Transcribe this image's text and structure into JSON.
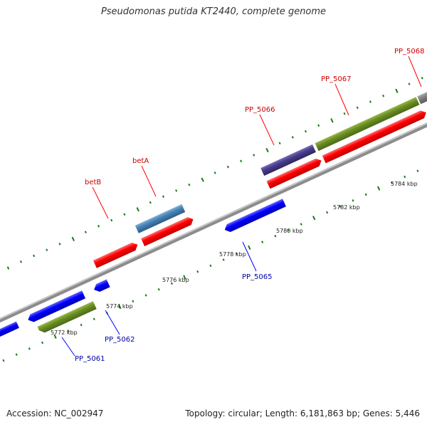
{
  "title": "Pseudomonas putida KT2440, complete genome",
  "footer": {
    "accession": "Accession: NC_002947",
    "summary": "Topology: circular; Length: 6,181,863 bp; Genes: 5,446"
  },
  "map": {
    "ticks": [
      {
        "kbp": 5772,
        "label": "5772 kbp"
      },
      {
        "kbp": 5774,
        "label": "5774 kbp"
      },
      {
        "kbp": 5776,
        "label": "5776 kbp"
      },
      {
        "kbp": 5778,
        "label": "5778 kbp"
      },
      {
        "kbp": 5780,
        "label": "5780 kbp"
      },
      {
        "kbp": 5782,
        "label": "5782 kbp"
      },
      {
        "kbp": 5784,
        "label": "5784 kbp"
      }
    ],
    "features": [
      {
        "label": "betB",
        "strand": "plus",
        "color": "#ff0000",
        "label_color": "#cc0000"
      },
      {
        "label": "betA",
        "strand": "plus",
        "color": "#ff0000",
        "label_color": "#cc0000"
      },
      {
        "label": "PP_5066",
        "strand": "plus",
        "color": "#ff0000",
        "label_color": "#cc0000"
      },
      {
        "label": "PP_5067",
        "strand": "plus",
        "color": "#ff0000",
        "label_color": "#cc0000"
      },
      {
        "label": "PP_5068",
        "strand": "plus",
        "color": "#ff0000",
        "label_color": "#cc0000"
      },
      {
        "label": "PP_5061",
        "strand": "minus",
        "color": "#0000ff",
        "label_color": "#0000aa"
      },
      {
        "label": "PP_5062",
        "strand": "minus",
        "color": "#0000ff",
        "label_color": "#0000aa"
      },
      {
        "label": "PP_5065",
        "strand": "minus",
        "color": "#0000ff",
        "label_color": "#0000aa"
      }
    ],
    "colors": {
      "backbone": "#8c8c8c",
      "plus_cds": "#ff0000",
      "minus_cds": "#0000ff",
      "rna_olive": "#6b8e23",
      "gene_steelblue": "#4682b4",
      "gene_slate": "#483d8b",
      "gene_gray": "#808080",
      "tick_green": "#1a7a1a"
    }
  }
}
